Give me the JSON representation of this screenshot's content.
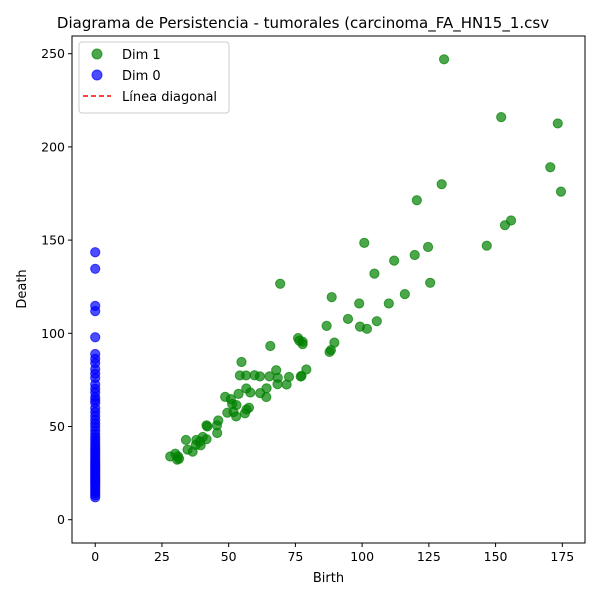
{
  "chart_data": {
    "type": "scatter",
    "title": "Diagrama de Persistencia - tumorales (carcinoma_FA_HN15_1.csv",
    "xlabel": "Birth",
    "ylabel": "Death",
    "xlim": [
      -8.7,
      183.5
    ],
    "ylim": [
      -12.5,
      259.5
    ],
    "xticks": [
      "0",
      "25",
      "50",
      "75",
      "100",
      "125",
      "150",
      "175"
    ],
    "yticks": [
      "0",
      "50",
      "100",
      "150",
      "200",
      "250"
    ],
    "legend_position": "top-left",
    "series": [
      {
        "name": "Dim 1",
        "color": "#008000",
        "points": [
          [
            130.7,
            247
          ],
          [
            152.1,
            216
          ],
          [
            173.3,
            212.6
          ],
          [
            170.5,
            189.1
          ],
          [
            174.5,
            176
          ],
          [
            129.8,
            180
          ],
          [
            120.5,
            171.4
          ],
          [
            155.8,
            160.5
          ],
          [
            153.5,
            158
          ],
          [
            100.8,
            148.5
          ],
          [
            146.7,
            147
          ],
          [
            124.7,
            146.3
          ],
          [
            119.7,
            142
          ],
          [
            112,
            139
          ],
          [
            104.6,
            132
          ],
          [
            125.5,
            127.1
          ],
          [
            69.3,
            126.6
          ],
          [
            116,
            121
          ],
          [
            88.6,
            119.4
          ],
          [
            98.9,
            116
          ],
          [
            110,
            116
          ],
          [
            94.7,
            107.7
          ],
          [
            105.5,
            106.5
          ],
          [
            86.7,
            104
          ],
          [
            99.2,
            103.6
          ],
          [
            101.8,
            102.4
          ],
          [
            76,
            97.4
          ],
          [
            76.5,
            96
          ],
          [
            77.7,
            95.5
          ],
          [
            77.7,
            94.2
          ],
          [
            89.6,
            95
          ],
          [
            65.6,
            93.2
          ],
          [
            88.3,
            91
          ],
          [
            87.8,
            90
          ],
          [
            54.8,
            84.6
          ],
          [
            79.1,
            80.6
          ],
          [
            67.8,
            80.2
          ],
          [
            54.2,
            77.4
          ],
          [
            56.5,
            77.4
          ],
          [
            59.7,
            77.5
          ],
          [
            61.7,
            76.9
          ],
          [
            65.3,
            76.9
          ],
          [
            72.6,
            76.6
          ],
          [
            68.4,
            76.1
          ],
          [
            77.3,
            77.2
          ],
          [
            77,
            76.8
          ],
          [
            68.3,
            72.7
          ],
          [
            71.7,
            72.5
          ],
          [
            56.6,
            70.4
          ],
          [
            64.2,
            70.5
          ],
          [
            58.1,
            68.2
          ],
          [
            61.8,
            67.9
          ],
          [
            53.7,
            67.5
          ],
          [
            64.1,
            65.8
          ],
          [
            48.7,
            65.9
          ],
          [
            50.8,
            64.7
          ],
          [
            51.3,
            62.1
          ],
          [
            52.9,
            61.5
          ],
          [
            57.6,
            60.1
          ],
          [
            56.7,
            59.1
          ],
          [
            49.5,
            57.4
          ],
          [
            56.1,
            57.1
          ],
          [
            51.8,
            57.8
          ],
          [
            52.8,
            55.4
          ],
          [
            46.1,
            53.2
          ],
          [
            45.6,
            50.6
          ],
          [
            41.7,
            50.6
          ],
          [
            42,
            50
          ],
          [
            45.7,
            46.5
          ],
          [
            40.3,
            44.4
          ],
          [
            41.7,
            43.2
          ],
          [
            34,
            42.8
          ],
          [
            37.9,
            42.8
          ],
          [
            39.2,
            42
          ],
          [
            37.7,
            40.1
          ],
          [
            39.5,
            39.9
          ],
          [
            34.6,
            37.6
          ],
          [
            36.5,
            36.5
          ],
          [
            30,
            35.4
          ],
          [
            28.1,
            33.9
          ],
          [
            31,
            34
          ],
          [
            31.4,
            32.7
          ],
          [
            30.7,
            32.2
          ]
        ]
      },
      {
        "name": "Dim 0",
        "color": "#0000ff",
        "points": [
          [
            0,
            143.5
          ],
          [
            0,
            134.6
          ],
          [
            0,
            114.7
          ],
          [
            0,
            111.9
          ],
          [
            0,
            97.9
          ],
          [
            0,
            88.9
          ],
          [
            0,
            86.3
          ],
          [
            0,
            84
          ],
          [
            0,
            80.8
          ],
          [
            0,
            78.3
          ],
          [
            0,
            76
          ],
          [
            0,
            72.6
          ],
          [
            0,
            70.3
          ],
          [
            0,
            68.3
          ],
          [
            0,
            65.8
          ],
          [
            0,
            64.2
          ],
          [
            0,
            62.7
          ],
          [
            0,
            59.8
          ],
          [
            0,
            57.7
          ],
          [
            0,
            55.6
          ],
          [
            0,
            53.5
          ],
          [
            0,
            51.6
          ],
          [
            0,
            49.8
          ],
          [
            0,
            47.7
          ],
          [
            0,
            45.9
          ],
          [
            0,
            44.2
          ],
          [
            0,
            42.8
          ],
          [
            0,
            41.2
          ],
          [
            0,
            39.8
          ],
          [
            0,
            38.5
          ],
          [
            0,
            37.2
          ],
          [
            0,
            35.9
          ],
          [
            0,
            34.8
          ],
          [
            0,
            33.6
          ],
          [
            0,
            32.5
          ],
          [
            0,
            31.4
          ],
          [
            0,
            30.4
          ],
          [
            0,
            29.4
          ],
          [
            0,
            28.4
          ],
          [
            0,
            27.5
          ],
          [
            0,
            26.6
          ],
          [
            0,
            25.7
          ],
          [
            0,
            24.8
          ],
          [
            0,
            23.9
          ],
          [
            0,
            23
          ],
          [
            0,
            22.1
          ],
          [
            0,
            21.2
          ],
          [
            0,
            20.3
          ],
          [
            0,
            19.4
          ],
          [
            0,
            18.5
          ],
          [
            0,
            17.5
          ],
          [
            0,
            16.5
          ],
          [
            0,
            15.4
          ],
          [
            0,
            14.3
          ],
          [
            0,
            13.1
          ],
          [
            0,
            12
          ]
        ]
      },
      {
        "name": "Línea diagonal",
        "color": "#ff0000",
        "style": "dashed",
        "points": []
      }
    ]
  }
}
